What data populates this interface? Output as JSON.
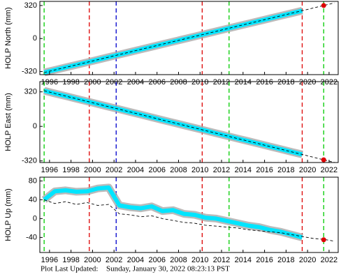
{
  "chart_data": [
    {
      "type": "line",
      "ylabel": "HOLP North (mm)",
      "xlim": [
        1995.1,
        2022.85
      ],
      "ylim": [
        -350,
        360
      ],
      "xticks": [
        1996,
        1998,
        2000,
        2002,
        2004,
        2006,
        2008,
        2010,
        2012,
        2014,
        2016,
        2018,
        2020,
        2022
      ],
      "yticks": [
        320,
        0,
        -320
      ],
      "vlines": [
        {
          "value": 1995.5,
          "color": "#00cc00"
        },
        {
          "value": 1999.7,
          "color": "#dd0000"
        },
        {
          "value": 2002.2,
          "color": "#0000cc"
        },
        {
          "value": 2010.2,
          "color": "#dd0000"
        },
        {
          "value": 2012.7,
          "color": "#00cc00"
        },
        {
          "value": 2019.5,
          "color": "#dd0000"
        },
        {
          "value": 2021.5,
          "color": "#00cc00"
        }
      ],
      "x": [
        1995.5,
        1996.5,
        1997.5,
        1998.5,
        1999.5,
        2000.5,
        2001.5,
        2002.5,
        2003.5,
        2004.5,
        2005.5,
        2006.5,
        2007.5,
        2008.5,
        2009.5,
        2010.5,
        2011.5,
        2012.5,
        2013.5,
        2014.5,
        2015.5,
        2016.5,
        2017.5,
        2018.5,
        2019.5,
        2020.5,
        2021.5,
        2022.5
      ],
      "series": [
        {
          "color": "#00e5ff",
          "values": [
            -330,
            -305,
            -280,
            -255,
            -230,
            -205,
            -180,
            -155,
            -130,
            -105,
            -80,
            -55,
            -30,
            -5,
            20,
            45,
            70,
            95,
            120,
            145,
            170,
            195,
            220,
            245,
            270,
            null,
            null,
            null
          ]
        },
        {
          "color": "#000000",
          "dashed": true,
          "values": [
            -330,
            -305,
            -280,
            -255,
            -230,
            -205,
            -180,
            -155,
            -130,
            -105,
            -80,
            -55,
            -30,
            -5,
            20,
            45,
            70,
            95,
            120,
            145,
            170,
            195,
            220,
            245,
            270,
            295,
            320,
            345
          ]
        },
        {
          "color": "#dd0000",
          "values": [
            null,
            null,
            null,
            null,
            null,
            null,
            null,
            null,
            null,
            null,
            null,
            null,
            null,
            null,
            null,
            null,
            null,
            null,
            null,
            null,
            null,
            null,
            null,
            null,
            null,
            null,
            320,
            null
          ]
        }
      ]
    },
    {
      "type": "line",
      "ylabel": "HOLP East (mm)",
      "xlim": [
        1995.1,
        2022.85
      ],
      "ylim": [
        -335,
        415
      ],
      "xticks": [
        1996,
        1998,
        2000,
        2002,
        2004,
        2006,
        2008,
        2010,
        2012,
        2014,
        2016,
        2018,
        2020,
        2022
      ],
      "yticks": [
        320,
        0,
        -320
      ],
      "vlines": [
        {
          "value": 1995.5,
          "color": "#00cc00"
        },
        {
          "value": 1999.7,
          "color": "#dd0000"
        },
        {
          "value": 2002.2,
          "color": "#0000cc"
        },
        {
          "value": 2010.2,
          "color": "#dd0000"
        },
        {
          "value": 2012.7,
          "color": "#00cc00"
        },
        {
          "value": 2019.5,
          "color": "#dd0000"
        },
        {
          "value": 2021.5,
          "color": "#00cc00"
        }
      ],
      "x": [
        1995.5,
        1996.5,
        1997.5,
        1998.5,
        1999.5,
        2000.5,
        2001.5,
        2002.5,
        2003.5,
        2004.5,
        2005.5,
        2006.5,
        2007.5,
        2008.5,
        2009.5,
        2010.5,
        2011.5,
        2012.5,
        2013.5,
        2014.5,
        2015.5,
        2016.5,
        2017.5,
        2018.5,
        2019.5,
        2020.5,
        2021.5,
        2022.5
      ],
      "series": [
        {
          "color": "#00e5ff",
          "values": [
            330,
            305,
            281,
            256,
            232,
            207,
            182,
            158,
            133,
            109,
            84,
            59,
            35,
            10,
            -14,
            -39,
            -64,
            -88,
            -113,
            -137,
            -162,
            -187,
            -211,
            -236,
            -260,
            null,
            null,
            null
          ]
        },
        {
          "color": "#000000",
          "dashed": true,
          "values": [
            330,
            305,
            281,
            256,
            232,
            207,
            182,
            158,
            133,
            109,
            84,
            59,
            35,
            10,
            -14,
            -39,
            -64,
            -88,
            -113,
            -137,
            -162,
            -187,
            -211,
            -236,
            -260,
            -285,
            -310,
            -334
          ]
        },
        {
          "color": "#dd0000",
          "values": [
            null,
            null,
            null,
            null,
            null,
            null,
            null,
            null,
            null,
            null,
            null,
            null,
            null,
            null,
            null,
            null,
            null,
            null,
            null,
            null,
            null,
            null,
            null,
            null,
            null,
            null,
            -310,
            null
          ]
        }
      ]
    },
    {
      "type": "line",
      "ylabel": "HOLP Up (mm)",
      "xlim": [
        1995.1,
        2022.85
      ],
      "ylim": [
        -72,
        88
      ],
      "xticks": [
        1996,
        1998,
        2000,
        2002,
        2004,
        2006,
        2008,
        2010,
        2012,
        2014,
        2016,
        2018,
        2020,
        2022
      ],
      "yticks": [
        80,
        40,
        0,
        -40
      ],
      "vlines": [
        {
          "value": 1995.5,
          "color": "#00cc00"
        },
        {
          "value": 1999.7,
          "color": "#dd0000"
        },
        {
          "value": 2002.2,
          "color": "#0000cc"
        },
        {
          "value": 2010.2,
          "color": "#dd0000"
        },
        {
          "value": 2012.7,
          "color": "#00cc00"
        },
        {
          "value": 2019.5,
          "color": "#dd0000"
        },
        {
          "value": 2021.5,
          "color": "#00cc00"
        }
      ],
      "x": [
        1995.5,
        1996.5,
        1997.5,
        1998.5,
        1999.5,
        2000.5,
        2001.5,
        2002.5,
        2003.5,
        2004.5,
        2005.5,
        2006.5,
        2007.5,
        2008.5,
        2009.5,
        2010.5,
        2011.5,
        2012.5,
        2013.5,
        2014.5,
        2015.5,
        2016.5,
        2017.5,
        2018.5,
        2019.5,
        2020.5,
        2021.5,
        2022.5
      ],
      "series": [
        {
          "color": "#00e5ff",
          "values": [
            40,
            58,
            60,
            57,
            58,
            64,
            66,
            28,
            24,
            22,
            26,
            16,
            18,
            10,
            8,
            2,
            0,
            -5,
            -10,
            -15,
            -18,
            -24,
            -28,
            -34,
            -40,
            null,
            null,
            null
          ]
        },
        {
          "color": "#000000",
          "dashed": true,
          "values": [
            40,
            32,
            36,
            30,
            34,
            28,
            30,
            10,
            8,
            4,
            6,
            0,
            -4,
            -8,
            -10,
            -14,
            -16,
            -18,
            -20,
            -24,
            -26,
            -28,
            -30,
            -34,
            -38,
            -42,
            -44,
            -48
          ]
        },
        {
          "color": "#dd0000",
          "values": [
            null,
            null,
            null,
            null,
            null,
            null,
            null,
            null,
            null,
            null,
            null,
            null,
            null,
            null,
            null,
            null,
            null,
            null,
            null,
            null,
            null,
            null,
            null,
            null,
            null,
            null,
            -45,
            null
          ]
        }
      ]
    }
  ],
  "footer": {
    "label": "Plot Last Updated:",
    "text": "Sunday, January 30, 2022 08:23:13 PST"
  }
}
